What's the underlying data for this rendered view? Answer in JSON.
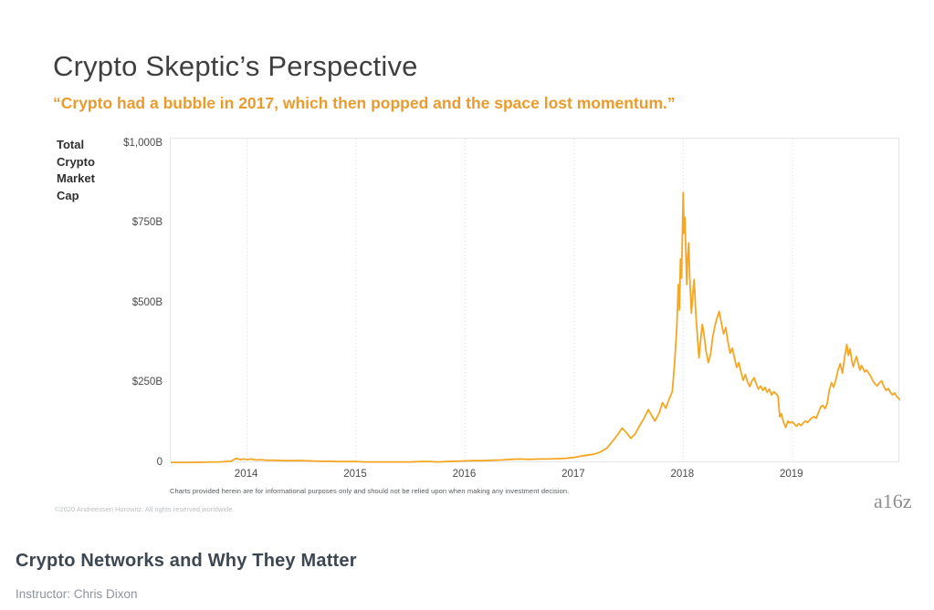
{
  "slide": {
    "title": "Crypto Skeptic’s Perspective",
    "quote": "“Crypto had a bubble in 2017, which then popped and the space lost momentum.”",
    "disclaimer": "Charts provided herein are for informational purposes only and should not be relied upon when making any investment decision.",
    "copyright": "©2020 Andreessen Horowitz. All rights reserved worldwide.",
    "logo": "a16z"
  },
  "chart_data": {
    "type": "line",
    "title": "",
    "ylabel": "Total Crypto Market Cap",
    "xlabel": "",
    "x_domain": [
      2013.3,
      2019.99
    ],
    "ylim": [
      0,
      1017
    ],
    "grid": "vertical-dotted",
    "legend": "none",
    "line_color": "#F5A623",
    "grid_color": "#d8dde3",
    "x_ticks": [
      2014,
      2015,
      2016,
      2017,
      2018,
      2019
    ],
    "y_ticks": [
      {
        "label": "$1,000B",
        "value": 1000
      },
      {
        "label": "$750B",
        "value": 750
      },
      {
        "label": "$500B",
        "value": 500
      },
      {
        "label": "$250B",
        "value": 250
      },
      {
        "label": "0",
        "value": 0
      }
    ],
    "series": [
      {
        "name": "Total Crypto Market Cap ($B)",
        "points": [
          [
            2013.3,
            2
          ],
          [
            2013.45,
            2
          ],
          [
            2013.6,
            3
          ],
          [
            2013.75,
            4
          ],
          [
            2013.85,
            6
          ],
          [
            2013.9,
            15
          ],
          [
            2013.94,
            11
          ],
          [
            2013.97,
            13
          ],
          [
            2014.0,
            11
          ],
          [
            2014.04,
            13
          ],
          [
            2014.08,
            10
          ],
          [
            2014.12,
            11
          ],
          [
            2014.18,
            9
          ],
          [
            2014.25,
            9
          ],
          [
            2014.33,
            8
          ],
          [
            2014.42,
            8
          ],
          [
            2014.5,
            8
          ],
          [
            2014.58,
            7
          ],
          [
            2014.67,
            6
          ],
          [
            2014.75,
            6
          ],
          [
            2014.83,
            5
          ],
          [
            2014.92,
            5
          ],
          [
            2015.0,
            5
          ],
          [
            2015.08,
            4
          ],
          [
            2015.17,
            4
          ],
          [
            2015.25,
            4
          ],
          [
            2015.33,
            4
          ],
          [
            2015.42,
            4
          ],
          [
            2015.5,
            4
          ],
          [
            2015.58,
            5
          ],
          [
            2015.67,
            5
          ],
          [
            2015.75,
            4
          ],
          [
            2015.83,
            5
          ],
          [
            2015.92,
            6
          ],
          [
            2016.0,
            7
          ],
          [
            2016.08,
            8
          ],
          [
            2016.17,
            8
          ],
          [
            2016.25,
            9
          ],
          [
            2016.33,
            10
          ],
          [
            2016.42,
            12
          ],
          [
            2016.5,
            13
          ],
          [
            2016.58,
            12
          ],
          [
            2016.67,
            13
          ],
          [
            2016.75,
            13
          ],
          [
            2016.83,
            14
          ],
          [
            2016.92,
            15
          ],
          [
            2017.0,
            18
          ],
          [
            2017.06,
            22
          ],
          [
            2017.12,
            25
          ],
          [
            2017.18,
            28
          ],
          [
            2017.24,
            35
          ],
          [
            2017.3,
            47
          ],
          [
            2017.35,
            68
          ],
          [
            2017.4,
            90
          ],
          [
            2017.44,
            110
          ],
          [
            2017.48,
            95
          ],
          [
            2017.52,
            78
          ],
          [
            2017.56,
            92
          ],
          [
            2017.6,
            118
          ],
          [
            2017.64,
            140
          ],
          [
            2017.68,
            168
          ],
          [
            2017.71,
            150
          ],
          [
            2017.74,
            132
          ],
          [
            2017.78,
            158
          ],
          [
            2017.81,
            190
          ],
          [
            2017.84,
            172
          ],
          [
            2017.87,
            200
          ],
          [
            2017.9,
            225
          ],
          [
            2017.92,
            310
          ],
          [
            2017.94,
            420
          ],
          [
            2017.955,
            560
          ],
          [
            2017.965,
            480
          ],
          [
            2017.975,
            640
          ],
          [
            2017.985,
            580
          ],
          [
            2018.0,
            848
          ],
          [
            2018.008,
            720
          ],
          [
            2018.016,
            770
          ],
          [
            2018.024,
            660
          ],
          [
            2018.032,
            560
          ],
          [
            2018.04,
            640
          ],
          [
            2018.05,
            690
          ],
          [
            2018.06,
            580
          ],
          [
            2018.075,
            470
          ],
          [
            2018.09,
            540
          ],
          [
            2018.1,
            575
          ],
          [
            2018.115,
            470
          ],
          [
            2018.13,
            395
          ],
          [
            2018.145,
            330
          ],
          [
            2018.16,
            385
          ],
          [
            2018.175,
            435
          ],
          [
            2018.19,
            405
          ],
          [
            2018.21,
            350
          ],
          [
            2018.23,
            315
          ],
          [
            2018.25,
            340
          ],
          [
            2018.27,
            395
          ],
          [
            2018.29,
            430
          ],
          [
            2018.31,
            455
          ],
          [
            2018.33,
            475
          ],
          [
            2018.35,
            440
          ],
          [
            2018.37,
            405
          ],
          [
            2018.39,
            425
          ],
          [
            2018.41,
            380
          ],
          [
            2018.43,
            345
          ],
          [
            2018.45,
            360
          ],
          [
            2018.47,
            330
          ],
          [
            2018.49,
            300
          ],
          [
            2018.51,
            315
          ],
          [
            2018.53,
            285
          ],
          [
            2018.55,
            260
          ],
          [
            2018.57,
            278
          ],
          [
            2018.59,
            255
          ],
          [
            2018.61,
            240
          ],
          [
            2018.63,
            258
          ],
          [
            2018.65,
            268
          ],
          [
            2018.67,
            248
          ],
          [
            2018.69,
            232
          ],
          [
            2018.71,
            242
          ],
          [
            2018.73,
            228
          ],
          [
            2018.75,
            238
          ],
          [
            2018.77,
            222
          ],
          [
            2018.79,
            232
          ],
          [
            2018.81,
            214
          ],
          [
            2018.83,
            224
          ],
          [
            2018.85,
            218
          ],
          [
            2018.87,
            210
          ],
          [
            2018.885,
            145
          ],
          [
            2018.9,
            155
          ],
          [
            2018.92,
            128
          ],
          [
            2018.94,
            112
          ],
          [
            2018.96,
            132
          ],
          [
            2018.98,
            126
          ],
          [
            2019.0,
            130
          ],
          [
            2019.02,
            122
          ],
          [
            2019.04,
            116
          ],
          [
            2019.06,
            124
          ],
          [
            2019.08,
            118
          ],
          [
            2019.1,
            126
          ],
          [
            2019.12,
            132
          ],
          [
            2019.14,
            127
          ],
          [
            2019.16,
            136
          ],
          [
            2019.18,
            142
          ],
          [
            2019.2,
            146
          ],
          [
            2019.22,
            141
          ],
          [
            2019.24,
            158
          ],
          [
            2019.26,
            176
          ],
          [
            2019.28,
            181
          ],
          [
            2019.3,
            171
          ],
          [
            2019.32,
            186
          ],
          [
            2019.34,
            230
          ],
          [
            2019.36,
            252
          ],
          [
            2019.38,
            238
          ],
          [
            2019.4,
            262
          ],
          [
            2019.42,
            292
          ],
          [
            2019.44,
            312
          ],
          [
            2019.46,
            282
          ],
          [
            2019.48,
            332
          ],
          [
            2019.5,
            372
          ],
          [
            2019.515,
            338
          ],
          [
            2019.53,
            358
          ],
          [
            2019.545,
            322
          ],
          [
            2019.56,
            302
          ],
          [
            2019.575,
            322
          ],
          [
            2019.59,
            334
          ],
          [
            2019.605,
            312
          ],
          [
            2019.62,
            292
          ],
          [
            2019.635,
            306
          ],
          [
            2019.65,
            296
          ],
          [
            2019.665,
            286
          ],
          [
            2019.68,
            292
          ],
          [
            2019.7,
            282
          ],
          [
            2019.72,
            272
          ],
          [
            2019.74,
            258
          ],
          [
            2019.76,
            248
          ],
          [
            2019.78,
            242
          ],
          [
            2019.8,
            252
          ],
          [
            2019.82,
            258
          ],
          [
            2019.84,
            240
          ],
          [
            2019.86,
            228
          ],
          [
            2019.88,
            234
          ],
          [
            2019.9,
            222
          ],
          [
            2019.92,
            214
          ],
          [
            2019.94,
            220
          ],
          [
            2019.96,
            208
          ],
          [
            2019.98,
            202
          ],
          [
            2019.99,
            198
          ]
        ]
      }
    ]
  },
  "footer": {
    "course_title": "Crypto Networks and Why They Matter",
    "instructor": "Instructor: Chris Dixon"
  }
}
